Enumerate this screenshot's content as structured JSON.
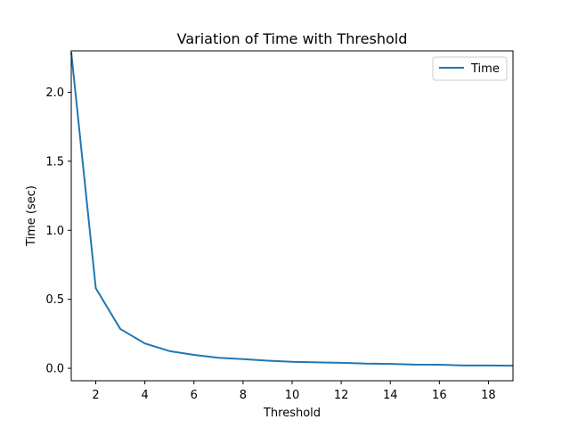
{
  "chart_data": {
    "type": "line",
    "title": "Variation of Time with Threshold",
    "xlabel": "Threshold",
    "ylabel": "Time (sec)",
    "xlim": [
      1,
      19
    ],
    "ylim": [
      -0.09,
      2.3
    ],
    "xticks": [
      2,
      4,
      6,
      8,
      10,
      12,
      14,
      16,
      18
    ],
    "yticks": [
      0.0,
      0.5,
      1.0,
      1.5,
      2.0
    ],
    "ytick_labels": [
      "0.0",
      "0.5",
      "1.0",
      "1.5",
      "2.0"
    ],
    "grid": false,
    "legend_position": "top-right",
    "series": [
      {
        "name": "Time",
        "color": "#1f77b4",
        "x": [
          1,
          2,
          3,
          4,
          5,
          6,
          7,
          8,
          9,
          10,
          11,
          12,
          13,
          14,
          15,
          16,
          17,
          18,
          19
        ],
        "values": [
          2.29,
          0.58,
          0.285,
          0.18,
          0.125,
          0.097,
          0.076,
          0.067,
          0.055,
          0.047,
          0.043,
          0.04,
          0.034,
          0.032,
          0.027,
          0.026,
          0.021,
          0.021,
          0.019
        ]
      }
    ]
  }
}
